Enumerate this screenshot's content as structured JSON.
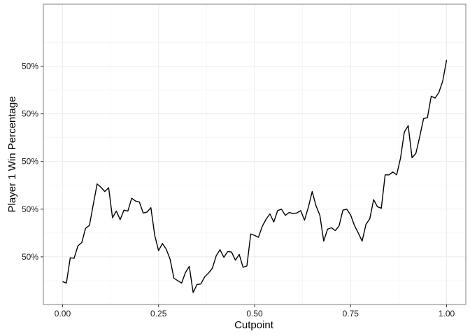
{
  "chart_data": {
    "type": "line",
    "title": "",
    "xlabel": "Cutpoint",
    "ylabel": "Player 1 Win Percentage",
    "xlim": [
      -0.05,
      1.05
    ],
    "ylim": [
      0.0,
      6.3
    ],
    "grid": true,
    "legend": "none",
    "x_ticks": [
      0.0,
      0.25,
      0.5,
      0.75,
      1.0
    ],
    "x_tick_labels": [
      "0.00",
      "0.25",
      "0.50",
      "0.75",
      "1.00"
    ],
    "y_ticks": [
      1,
      2,
      3,
      4,
      5
    ],
    "y_tick_labels": [
      "50%",
      "50%",
      "50%",
      "50%",
      "50%"
    ],
    "line_color": "#000000",
    "series": [
      {
        "x": [
          0.0,
          0.01,
          0.02,
          0.03,
          0.04,
          0.05,
          0.06,
          0.07,
          0.08,
          0.09,
          0.1,
          0.11,
          0.12,
          0.13,
          0.14,
          0.15,
          0.16,
          0.17,
          0.18,
          0.19,
          0.2,
          0.21,
          0.22,
          0.23,
          0.24,
          0.25,
          0.26,
          0.27,
          0.28,
          0.29,
          0.3,
          0.31,
          0.32,
          0.33,
          0.34,
          0.35,
          0.36,
          0.37,
          0.38,
          0.39,
          0.4,
          0.41,
          0.42,
          0.43,
          0.44,
          0.45,
          0.46,
          0.47,
          0.48,
          0.49,
          0.5,
          0.51,
          0.52,
          0.53,
          0.54,
          0.55,
          0.56,
          0.57,
          0.58,
          0.59,
          0.6,
          0.61,
          0.62,
          0.63,
          0.64,
          0.65,
          0.66,
          0.67,
          0.68,
          0.69,
          0.7,
          0.71,
          0.72,
          0.73,
          0.74,
          0.75,
          0.76,
          0.77,
          0.78,
          0.79,
          0.8,
          0.81,
          0.82,
          0.83,
          0.84,
          0.85,
          0.86,
          0.87,
          0.88,
          0.89,
          0.9,
          0.91,
          0.92,
          0.93,
          0.94,
          0.95,
          0.96,
          0.97,
          0.98,
          0.99,
          1.0
        ],
        "y": [
          0.48,
          0.45,
          0.98,
          0.97,
          1.23,
          1.3,
          1.6,
          1.66,
          2.1,
          2.53,
          2.46,
          2.37,
          2.45,
          1.82,
          1.96,
          1.78,
          1.98,
          1.96,
          2.23,
          2.17,
          2.15,
          1.92,
          1.94,
          2.03,
          1.45,
          1.13,
          1.28,
          1.16,
          0.95,
          0.55,
          0.5,
          0.45,
          0.67,
          0.8,
          0.25,
          0.42,
          0.43,
          0.58,
          0.66,
          0.76,
          1.02,
          1.15,
          0.99,
          1.11,
          1.1,
          0.93,
          1.05,
          0.78,
          0.81,
          1.48,
          1.45,
          1.41,
          1.64,
          1.79,
          1.9,
          1.73,
          1.97,
          2.0,
          1.87,
          1.93,
          1.91,
          1.92,
          1.97,
          1.77,
          2.04,
          2.37,
          2.07,
          1.87,
          1.33,
          1.58,
          1.61,
          1.55,
          1.65,
          1.98,
          2.0,
          1.88,
          1.66,
          1.5,
          1.33,
          1.68,
          1.8,
          2.2,
          2.05,
          2.02,
          2.72,
          2.72,
          2.78,
          2.72,
          3.07,
          3.62,
          3.75,
          3.08,
          3.17,
          3.52,
          3.9,
          3.92,
          4.37,
          4.33,
          4.45,
          4.69,
          5.13
        ]
      }
    ]
  }
}
